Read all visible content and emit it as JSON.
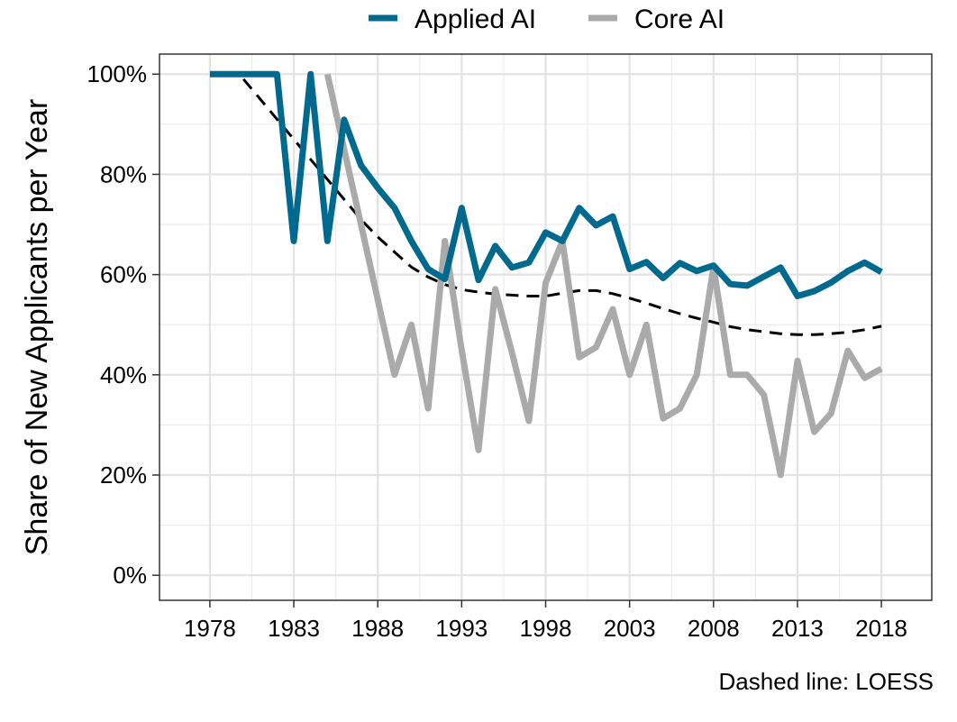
{
  "chart_data": {
    "type": "line",
    "title": "",
    "xlabel": "",
    "ylabel": "Share of New Applicants per Year",
    "caption": "Dashed line: LOESS",
    "xlim": [
      1975,
      2021
    ],
    "ylim": [
      -0.05,
      1.04
    ],
    "x_ticks": [
      1978,
      1983,
      1988,
      1993,
      1998,
      2003,
      2008,
      2013,
      2018
    ],
    "y_ticks": [
      0,
      0.2,
      0.4,
      0.6,
      0.8,
      1.0
    ],
    "y_tick_labels": [
      "0%",
      "20%",
      "40%",
      "60%",
      "80%",
      "100%"
    ],
    "grid": true,
    "legend_position": "top",
    "series": [
      {
        "name": "Applied AI",
        "color": "#006a8e",
        "x": [
          1978,
          1979,
          1980,
          1981,
          1982,
          1983,
          1984,
          1985,
          1986,
          1987,
          1988,
          1989,
          1990,
          1991,
          1992,
          1993,
          1994,
          1995,
          1996,
          1997,
          1998,
          1999,
          2000,
          2001,
          2002,
          2003,
          2004,
          2005,
          2006,
          2007,
          2008,
          2009,
          2010,
          2011,
          2012,
          2013,
          2014,
          2015,
          2016,
          2017,
          2018
        ],
        "values": [
          1.0,
          1.0,
          1.0,
          1.0,
          1.0,
          0.667,
          1.0,
          0.667,
          0.909,
          0.818,
          0.773,
          0.733,
          0.667,
          0.611,
          0.591,
          0.733,
          0.589,
          0.657,
          0.614,
          0.624,
          0.684,
          0.667,
          0.733,
          0.698,
          0.716,
          0.611,
          0.625,
          0.593,
          0.623,
          0.607,
          0.618,
          0.581,
          0.578,
          0.596,
          0.614,
          0.557,
          0.567,
          0.584,
          0.607,
          0.624,
          0.605
        ]
      },
      {
        "name": "Core AI",
        "color": "#aaaaaa",
        "x": [
          1985,
          1986,
          1987,
          1988,
          1989,
          1990,
          1991,
          1992,
          1993,
          1994,
          1995,
          1996,
          1997,
          1998,
          1999,
          2000,
          2001,
          2002,
          2003,
          2004,
          2005,
          2006,
          2007,
          2008,
          2009,
          2010,
          2011,
          2012,
          2013,
          2014,
          2015,
          2016,
          2017,
          2018
        ],
        "values": [
          1.0,
          0.85,
          0.7,
          0.55,
          0.4,
          0.5,
          0.333,
          0.667,
          0.45,
          0.25,
          0.571,
          0.444,
          0.308,
          0.583,
          0.667,
          0.435,
          0.455,
          0.531,
          0.4,
          0.5,
          0.313,
          0.333,
          0.4,
          0.615,
          0.4,
          0.4,
          0.36,
          0.2,
          0.428,
          0.286,
          0.323,
          0.448,
          0.394,
          0.412
        ]
      },
      {
        "name": "",
        "style": "dashed",
        "color": "#000000",
        "x": [
          1980,
          1981,
          1982,
          1983,
          1984,
          1985,
          1986,
          1987,
          1988,
          1989,
          1990,
          1991,
          1992,
          1993,
          1994,
          1995,
          1996,
          1997,
          1998,
          1999,
          2000,
          2001,
          2002,
          2003,
          2004,
          2005,
          2006,
          2007,
          2008,
          2009,
          2010,
          2011,
          2012,
          2013,
          2014,
          2015,
          2016,
          2017,
          2018
        ],
        "values": [
          0.99,
          0.95,
          0.91,
          0.87,
          0.83,
          0.79,
          0.75,
          0.71,
          0.675,
          0.645,
          0.615,
          0.595,
          0.58,
          0.57,
          0.565,
          0.561,
          0.559,
          0.557,
          0.557,
          0.563,
          0.568,
          0.568,
          0.562,
          0.553,
          0.543,
          0.532,
          0.522,
          0.513,
          0.505,
          0.496,
          0.49,
          0.486,
          0.482,
          0.48,
          0.48,
          0.482,
          0.485,
          0.49,
          0.497
        ]
      }
    ]
  }
}
